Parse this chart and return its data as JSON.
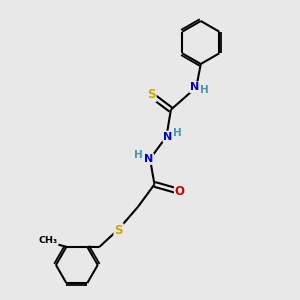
{
  "bg_color": "#e8e8e8",
  "bond_color": "#000000",
  "bond_width": 1.5,
  "atom_colors": {
    "C": "#000000",
    "N": "#0000cc",
    "O": "#cc0000",
    "S": "#ccaa00",
    "H": "#4499aa"
  },
  "figsize": [
    3.0,
    3.0
  ],
  "dpi": 100,
  "xlim": [
    0,
    10
  ],
  "ylim": [
    0,
    10
  ]
}
